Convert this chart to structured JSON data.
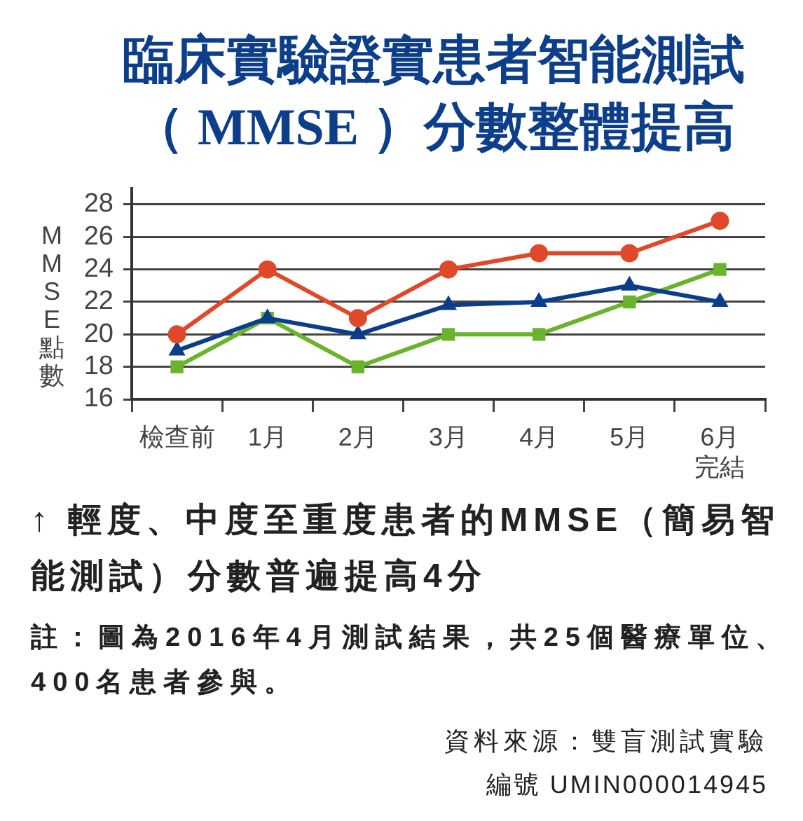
{
  "chart_data": {
    "type": "line",
    "title": "臨床實驗證實患者智能測試（ MMSE ）分數整體提高",
    "ylabel": "MMSE點數",
    "categories": [
      "檢查前",
      "1月",
      "2月",
      "3月",
      "4月",
      "5月",
      "6月完結"
    ],
    "series": [
      {
        "color": "#e0482a",
        "marker": "circle",
        "values": [
          20,
          24,
          21,
          24,
          25,
          25,
          27
        ]
      },
      {
        "color": "#0c3d8a",
        "marker": "triangle",
        "values": [
          19,
          21,
          20,
          21.8,
          22,
          23,
          22
        ]
      },
      {
        "color": "#6ab42d",
        "marker": "square",
        "values": [
          18,
          21,
          18,
          20,
          20,
          22,
          24
        ]
      }
    ],
    "ylim": [
      16,
      29
    ],
    "yticks": [
      16,
      18,
      20,
      22,
      24,
      26,
      28
    ],
    "grid": "y",
    "legend": false,
    "annotations": [
      "↑ 輕度、中度至重度患者的MMSE（簡易智能測試）分數普遍提高4分",
      "註：圖為2016年4月測試結果，共25個醫療單位、400名患者參與。",
      "資料來源：雙盲測試實驗",
      "編號 UMIN000014945"
    ]
  }
}
